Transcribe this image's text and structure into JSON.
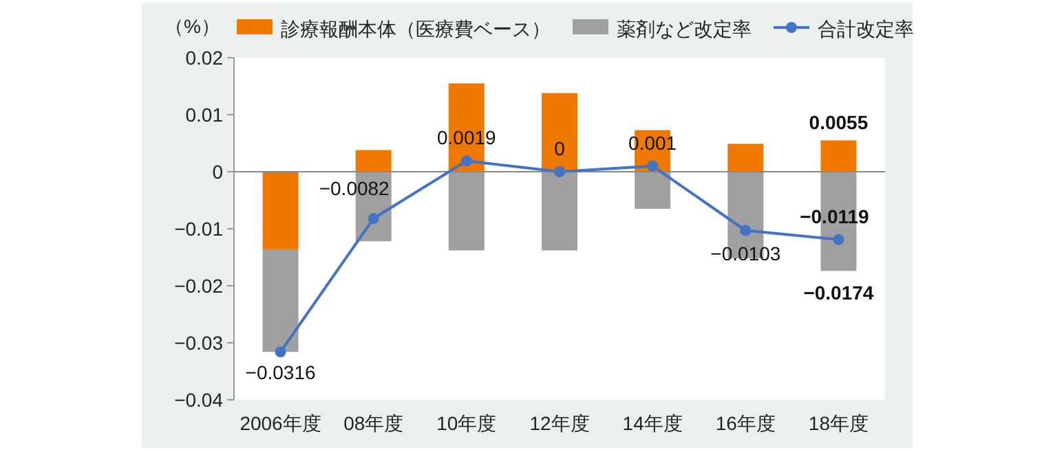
{
  "chart_data": {
    "type": "bar",
    "stacked": true,
    "ylabel": "（%）",
    "legend": "top",
    "categories": [
      "2006年度",
      "08年度",
      "10年度",
      "12年度",
      "14年度",
      "16年度",
      "18年度"
    ],
    "ylim": [
      -0.04,
      0.02
    ],
    "yticks": [
      {
        "value": -0.04,
        "label": "−0.04"
      },
      {
        "value": -0.03,
        "label": "−0.03"
      },
      {
        "value": -0.02,
        "label": "−0.02"
      },
      {
        "value": -0.01,
        "label": "−0.01"
      },
      0,
      0.01,
      0.02
    ],
    "series": [
      {
        "name": "診療報酬本体（医療費ベース）",
        "color": "#ee7800",
        "values": [
          -0.0136,
          0.0038,
          0.0155,
          0.0138,
          0.0073,
          0.0049,
          0.0055
        ],
        "value_labels": [
          null,
          null,
          null,
          null,
          null,
          null,
          "0.0055"
        ]
      },
      {
        "name": "薬剤など改定率",
        "color": "#a0a0a0",
        "values": [
          -0.018,
          -0.0122,
          -0.0138,
          -0.0138,
          -0.0065,
          -0.0152,
          -0.0174
        ],
        "value_labels": [
          null,
          null,
          null,
          null,
          null,
          null,
          "−0.0174"
        ]
      },
      {
        "name": "合計改定率",
        "type": "line",
        "color": "#4472c4",
        "marker": "circle",
        "values": [
          -0.0316,
          -0.0082,
          0.0019,
          0,
          0.001,
          -0.0103,
          -0.0119
        ],
        "value_labels": [
          "−0.0316",
          "−0.0082",
          "0.0019",
          "0",
          "0.001",
          "−0.0103",
          "−0.0119"
        ]
      }
    ]
  }
}
